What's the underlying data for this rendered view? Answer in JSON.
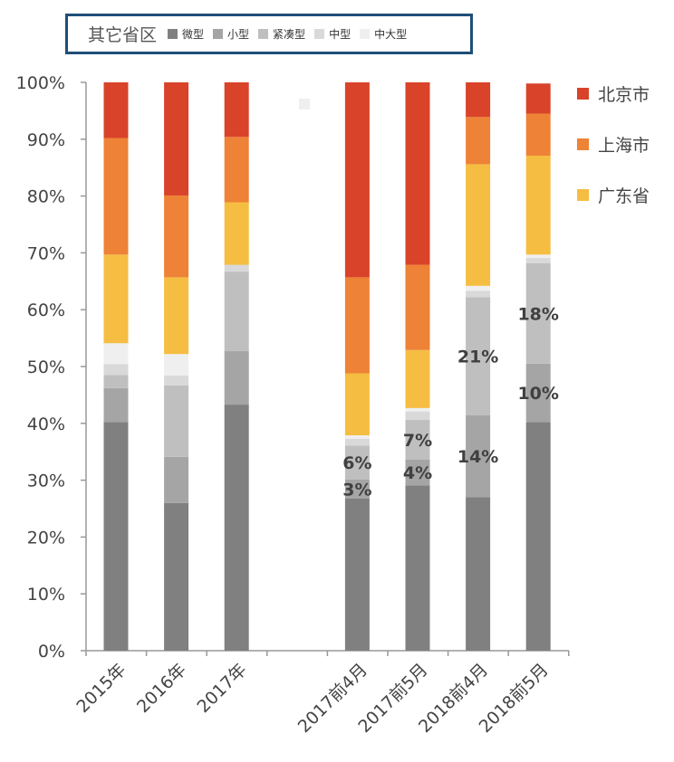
{
  "chart_data": {
    "type": "bar",
    "stacked": true,
    "title": "",
    "xlabel": "",
    "ylabel": "",
    "ylim": [
      0,
      100
    ],
    "yticks": [
      "0%",
      "10%",
      "20%",
      "30%",
      "40%",
      "50%",
      "60%",
      "70%",
      "80%",
      "90%",
      "100%"
    ],
    "categories": [
      "2015年",
      "2016年",
      "2017年",
      "",
      "2017前4月",
      "2017前5月",
      "2018前4月",
      "2018前5月"
    ],
    "legend_group_title": "其它省区",
    "series": [
      {
        "name": "微型",
        "color": "#808080",
        "values": [
          40.2,
          26.0,
          43.3,
          0,
          26.8,
          29.1,
          27.0,
          40.2
        ]
      },
      {
        "name": "小型",
        "color": "#a5a5a5",
        "values": [
          6.0,
          8.1,
          9.4,
          0,
          3.3,
          4.5,
          14.4,
          10.3
        ]
      },
      {
        "name": "紧凑型",
        "color": "#bfbfbf",
        "values": [
          2.3,
          12.6,
          14.0,
          0,
          6.0,
          7.0,
          20.8,
          17.7
        ]
      },
      {
        "name": "中型",
        "color": "#d9d9d9",
        "values": [
          1.9,
          1.7,
          1.2,
          0,
          1.2,
          1.5,
          1.1,
          0.9
        ]
      },
      {
        "name": "中大型",
        "color": "#efefef",
        "values": [
          3.7,
          3.8,
          0,
          0,
          0.6,
          0.6,
          0.9,
          0.6
        ]
      },
      {
        "name": "广东省",
        "color": "#f5bd42",
        "values": [
          15.6,
          13.5,
          11.0,
          0,
          10.9,
          10.2,
          21.4,
          17.4
        ]
      },
      {
        "name": "上海市",
        "color": "#ee8236",
        "values": [
          20.5,
          14.4,
          11.5,
          0,
          16.9,
          15.0,
          8.3,
          7.4
        ]
      },
      {
        "name": "北京市",
        "color": "#d9432a",
        "values": [
          9.8,
          19.9,
          9.6,
          0,
          34.3,
          32.1,
          6.1,
          5.3
        ]
      }
    ],
    "data_labels": [
      {
        "category": "2017前4月",
        "series": "紧凑型",
        "text": "6%"
      },
      {
        "category": "2017前4月",
        "series": "小型",
        "text": "3%"
      },
      {
        "category": "2017前5月",
        "series": "紧凑型",
        "text": "7%"
      },
      {
        "category": "2017前5月",
        "series": "小型",
        "text": "4%"
      },
      {
        "category": "2018前4月",
        "series": "紧凑型",
        "text": "21%"
      },
      {
        "category": "2018前4月",
        "series": "小型",
        "text": "14%"
      },
      {
        "category": "2018前5月",
        "series": "紧凑型",
        "text": "18%"
      },
      {
        "category": "2018前5月",
        "series": "小型",
        "text": "10%"
      }
    ],
    "legend_placement": "top (other provinces) and right (provinces)",
    "grid": false
  }
}
